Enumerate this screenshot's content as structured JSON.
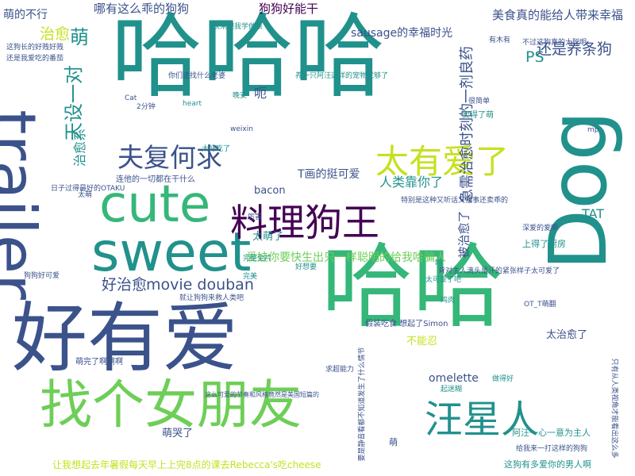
{
  "palette": {
    "purple": "#440154",
    "indigo": "#3b528b",
    "blue": "#31688e",
    "teal": "#21918c",
    "green": "#35b779",
    "lime": "#6ece58",
    "yellow": "#c7e020"
  },
  "words": [
    {
      "text": "哈哈哈",
      "color": "teal",
      "weight": 100,
      "vertical": false
    },
    {
      "text": "哈哈",
      "color": "green",
      "weight": 88,
      "vertical": false
    },
    {
      "text": "Dog",
      "color": "teal",
      "weight": 80,
      "vertical": true
    },
    {
      "text": "trailer",
      "color": "indigo",
      "weight": 78,
      "vertical": true
    },
    {
      "text": "好有爱",
      "color": "indigo",
      "weight": 86,
      "vertical": false
    },
    {
      "text": "cute",
      "color": "green",
      "weight": 60,
      "vertical": false
    },
    {
      "text": "sweet",
      "color": "teal",
      "weight": 62,
      "vertical": false
    },
    {
      "text": "找个女朋友",
      "color": "lime",
      "weight": 62,
      "vertical": false
    },
    {
      "text": "料理狗王",
      "color": "purple",
      "weight": 44,
      "vertical": false
    },
    {
      "text": "汪星人",
      "color": "teal",
      "weight": 44,
      "vertical": false
    },
    {
      "text": "太有爱了",
      "color": "yellow",
      "weight": 38,
      "vertical": false
    },
    {
      "text": "夫复何求",
      "color": "indigo",
      "weight": 30,
      "vertical": false
    },
    {
      "text": "天设一对",
      "color": "teal",
      "weight": 22,
      "vertical": true
    },
    {
      "text": "还是养条狗",
      "color": "indigo",
      "weight": 17,
      "vertical": false
    },
    {
      "text": "美食真的能给人带来幸福",
      "color": "indigo",
      "weight": 14,
      "vertical": false
    },
    {
      "text": "哪有这么乖的狗狗",
      "color": "indigo",
      "weight": 14,
      "vertical": false
    },
    {
      "text": "狗狗好能干",
      "color": "purple",
      "weight": 14,
      "vertical": false
    },
    {
      "text": "sausage的幸福时光",
      "color": "indigo",
      "weight": 13,
      "vertical": false
    },
    {
      "text": "萌的不行",
      "color": "indigo",
      "weight": 13,
      "vertical": false
    },
    {
      "text": "治愈",
      "color": "yellow",
      "weight": 17,
      "vertical": false
    },
    {
      "text": "PS",
      "color": "teal",
      "weight": 17,
      "vertical": false
    },
    {
      "text": "治愈系",
      "color": "teal",
      "weight": 14,
      "vertical": true
    },
    {
      "text": "萌",
      "color": "teal",
      "weight": 22,
      "vertical": false
    },
    {
      "text": "呃",
      "color": "indigo",
      "weight": 14,
      "vertical": false
    },
    {
      "text": "人类靠你了",
      "color": "teal",
      "weight": 14,
      "vertical": false
    },
    {
      "text": "T画的挺可爱",
      "color": "indigo",
      "weight": 13,
      "vertical": false
    },
    {
      "text": "bacon",
      "color": "indigo",
      "weight": 12,
      "vertical": false
    },
    {
      "text": "movie douban",
      "color": "indigo",
      "weight": 17,
      "vertical": false
    },
    {
      "text": "好治愈",
      "color": "indigo",
      "weight": 17,
      "vertical": false
    },
    {
      "text": "TAT",
      "color": "teal",
      "weight": 14,
      "vertical": false
    },
    {
      "text": "急需治愈时刻的一剂良药",
      "color": "indigo",
      "weight": 17,
      "vertical": true
    },
    {
      "text": "被治愈了",
      "color": "indigo",
      "weight": 14,
      "vertical": true
    },
    {
      "text": "爱娃你要快生出只一样聪明的给我哈骗人",
      "color": "lime",
      "weight": 13,
      "vertical": false
    },
    {
      "text": "太萌了",
      "color": "teal",
      "weight": 12,
      "vertical": false
    },
    {
      "text": "上得了厨房",
      "color": "teal",
      "weight": 10,
      "vertical": false
    },
    {
      "text": "太治愈了",
      "color": "indigo",
      "weight": 12,
      "vertical": false
    },
    {
      "text": "不能忍",
      "color": "yellow",
      "weight": 12,
      "vertical": false
    },
    {
      "text": "omelette",
      "color": "indigo",
      "weight": 13,
      "vertical": false
    },
    {
      "text": "萌哭了",
      "color": "indigo",
      "weight": 12,
      "vertical": false
    },
    {
      "text": "萌",
      "color": "indigo",
      "weight": 10,
      "vertical": false
    },
    {
      "text": "这狗有多爱你的男人啊",
      "color": "teal",
      "weight": 10,
      "vertical": false
    },
    {
      "text": "让我想起去年暑假每天早上上完8点的课去Rebecca's吃cheese",
      "color": "yellow",
      "weight": 11,
      "vertical": false
    },
    {
      "text": "阿汪一心一意为主人",
      "color": "teal",
      "weight": 10,
      "vertical": false
    },
    {
      "text": "萌完了啊啊啊",
      "color": "indigo",
      "weight": 9,
      "vertical": false
    },
    {
      "text": "假装吃食 想起了Simon",
      "color": "indigo",
      "weight": 9,
      "vertical": false
    },
    {
      "text": "日子过得最好的OTAKU",
      "color": "indigo",
      "weight": 8,
      "vertical": false
    },
    {
      "text": "连他的一切都在干什么",
      "color": "indigo",
      "weight": 9,
      "vertical": false
    },
    {
      "text": "就让狗狗来救人类吧",
      "color": "indigo",
      "weight": 8,
      "vertical": false
    },
    {
      "text": "哦",
      "color": "teal",
      "weight": 9,
      "vertical": false
    },
    {
      "text": "卖得了萌",
      "color": "teal",
      "weight": 9,
      "vertical": false
    },
    {
      "text": "你们还找什么老婆",
      "color": "indigo",
      "weight": 8,
      "vertical": false
    },
    {
      "text": "养一只阿汪这样的宠物就够了",
      "color": "teal",
      "weight": 8,
      "vertical": false
    },
    {
      "text": "这狗长的好贱好贱",
      "color": "indigo",
      "weight": 8,
      "vertical": false
    },
    {
      "text": "还是我爱吃的番茄",
      "color": "indigo",
      "weight": 8,
      "vertical": false
    },
    {
      "text": "狗狗好可爱",
      "color": "indigo",
      "weight": 8,
      "vertical": false
    },
    {
      "text": "深爱的爱啊",
      "color": "indigo",
      "weight": 8,
      "vertical": false
    },
    {
      "text": "太可爱了吧",
      "color": "teal",
      "weight": 8,
      "vertical": false
    },
    {
      "text": "完整全片",
      "color": "teal",
      "weight": 8,
      "vertical": false
    },
    {
      "text": "好想要",
      "color": "teal",
      "weight": 8,
      "vertical": false
    },
    {
      "text": "只有从人类视角才能看出这么多",
      "color": "indigo",
      "weight": 8,
      "vertical": true
    },
    {
      "text": "晚安",
      "color": "teal",
      "weight": 8,
      "vertical": false
    },
    {
      "text": "heart",
      "color": "teal",
      "weight": 8,
      "vertical": false
    },
    {
      "text": "weixin",
      "color": "indigo",
      "weight": 8,
      "vertical": false
    },
    {
      "text": "Cat",
      "color": "indigo",
      "weight": 8,
      "vertical": false
    },
    {
      "text": "2分钟",
      "color": "indigo",
      "weight": 8,
      "vertical": false
    },
    {
      "text": "mp",
      "color": "indigo",
      "weight": 8,
      "vertical": false
    },
    {
      "text": "有木有",
      "color": "indigo",
      "weight": 8,
      "vertical": false
    },
    {
      "text": "很简单",
      "color": "indigo",
      "weight": 8,
      "vertical": false
    },
    {
      "text": "太萌",
      "color": "indigo",
      "weight": 8,
      "vertical": false
    },
    {
      "text": "太好吃了",
      "color": "teal",
      "weight": 8,
      "vertical": false
    },
    {
      "text": "OT_T萌翻",
      "color": "indigo",
      "weight": 8,
      "vertical": false
    },
    {
      "text": "鸡肉",
      "color": "teal",
      "weight": 8,
      "vertical": false
    },
    {
      "text": "厉害",
      "color": "indigo",
      "weight": 8,
      "vertical": false
    },
    {
      "text": "完美",
      "color": "teal",
      "weight": 8,
      "vertical": false
    },
    {
      "text": "起迷糊",
      "color": "teal",
      "weight": 8,
      "vertical": false
    },
    {
      "text": "求超能力",
      "color": "indigo",
      "weight": 8,
      "vertical": false
    },
    {
      "text": "做得好",
      "color": "teal",
      "weight": 8,
      "vertical": false
    },
    {
      "text": "不过这狗真的太聪明",
      "color": "indigo",
      "weight": 8,
      "vertical": false
    },
    {
      "text": "特别是这种又听话又懂事还卖乖的",
      "color": "indigo",
      "weight": 8,
      "vertical": false
    },
    {
      "text": "给我来一打这样的狗狗",
      "color": "indigo",
      "weight": 8,
      "vertical": false
    },
    {
      "text": "背对主人滴头是汗的紧张样子太可爱了",
      "color": "indigo",
      "weight": 8,
      "vertical": false
    },
    {
      "text": "要是静音看都不知道发生了什么情节",
      "color": "indigo",
      "weight": 8,
      "vertical": true
    },
    {
      "text": "快来跟我学做菜",
      "color": "teal",
      "weight": 8,
      "vertical": false
    },
    {
      "text": "这么可爱的节奏和风格竟然是美国短篇的",
      "color": "indigo",
      "weight": 7,
      "vertical": false
    }
  ]
}
